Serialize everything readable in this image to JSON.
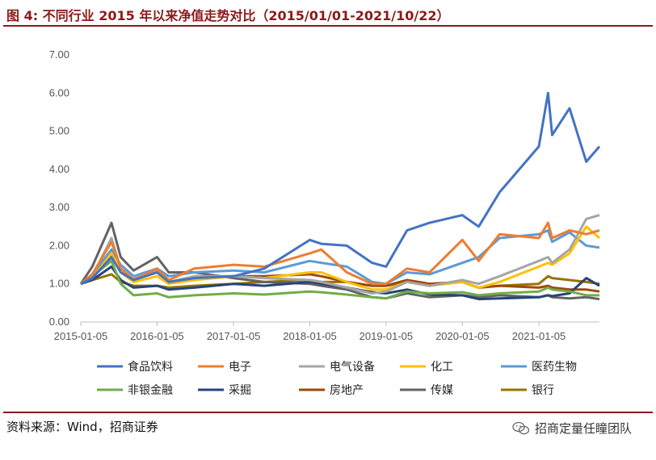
{
  "header": {
    "title": "图 4:  不同行业 2015 年以来净值走势对比（2015/01/01-2021/10/22）"
  },
  "footer": {
    "source": "资料来源：Wind，招商证券",
    "watermark": "招商定量任瞳团队",
    "watermark_icon": "wechat-icon"
  },
  "chart_data": {
    "type": "line",
    "title": "",
    "xlabel": "",
    "ylabel": "",
    "ylim": [
      0,
      7
    ],
    "yticks": [
      "0.00",
      "1.00",
      "2.00",
      "3.00",
      "4.00",
      "5.00",
      "6.00",
      "7.00"
    ],
    "xticks": [
      "2015-01-05",
      "2016-01-05",
      "2017-01-05",
      "2018-01-05",
      "2019-01-05",
      "2020-01-05",
      "2021-01-05"
    ],
    "legend_position": "bottom",
    "grid": false,
    "x": [
      "2015-01-05",
      "2015-03-01",
      "2015-06-01",
      "2015-07-15",
      "2015-09-15",
      "2016-01-05",
      "2016-03-01",
      "2016-07-01",
      "2017-01-05",
      "2017-06-01",
      "2018-01-05",
      "2018-03-01",
      "2018-07-01",
      "2018-10-30",
      "2019-01-05",
      "2019-04-15",
      "2019-08-01",
      "2020-01-05",
      "2020-03-23",
      "2020-07-01",
      "2021-01-05",
      "2021-02-18",
      "2021-03-10",
      "2021-06-01",
      "2021-08-20",
      "2021-10-22"
    ],
    "series": [
      {
        "name": "食品饮料",
        "color": "#4472c4",
        "values": [
          1.0,
          1.15,
          1.7,
          1.3,
          1.1,
          1.3,
          1.05,
          1.15,
          1.2,
          1.4,
          2.15,
          2.05,
          2.0,
          1.55,
          1.45,
          2.4,
          2.6,
          2.8,
          2.5,
          3.4,
          4.6,
          6.0,
          4.9,
          5.6,
          4.2,
          4.6
        ]
      },
      {
        "name": "电子",
        "color": "#ed7d31",
        "values": [
          1.0,
          1.25,
          2.1,
          1.4,
          1.1,
          1.4,
          1.1,
          1.4,
          1.5,
          1.45,
          1.8,
          1.9,
          1.3,
          1.0,
          1.0,
          1.4,
          1.3,
          2.15,
          1.6,
          2.3,
          2.2,
          2.6,
          2.2,
          2.4,
          2.3,
          2.4
        ]
      },
      {
        "name": "电气设备",
        "color": "#a5a5a5",
        "values": [
          1.0,
          1.2,
          2.2,
          1.4,
          1.15,
          1.35,
          1.05,
          1.2,
          1.2,
          1.15,
          1.1,
          1.05,
          0.9,
          0.75,
          0.8,
          1.05,
          0.95,
          1.1,
          1.0,
          1.2,
          1.6,
          1.7,
          1.55,
          1.9,
          2.7,
          2.8
        ]
      },
      {
        "name": "化工",
        "color": "#ffc000",
        "values": [
          1.0,
          1.15,
          1.8,
          1.3,
          1.05,
          1.2,
          1.0,
          1.1,
          1.2,
          1.15,
          1.3,
          1.3,
          1.05,
          0.85,
          0.85,
          1.05,
          0.95,
          1.05,
          0.9,
          1.05,
          1.45,
          1.55,
          1.5,
          1.8,
          2.5,
          2.2
        ]
      },
      {
        "name": "医药生物",
        "color": "#5b9bd5",
        "values": [
          1.0,
          1.25,
          1.9,
          1.5,
          1.2,
          1.4,
          1.2,
          1.3,
          1.35,
          1.3,
          1.6,
          1.55,
          1.45,
          1.05,
          1.0,
          1.3,
          1.25,
          1.55,
          1.7,
          2.2,
          2.3,
          2.4,
          2.1,
          2.35,
          2.0,
          1.95
        ]
      },
      {
        "name": "非银金融",
        "color": "#70ad47",
        "values": [
          1.0,
          1.2,
          1.6,
          1.0,
          0.7,
          0.75,
          0.65,
          0.7,
          0.75,
          0.72,
          0.8,
          0.78,
          0.72,
          0.65,
          0.62,
          0.8,
          0.75,
          0.78,
          0.7,
          0.75,
          0.8,
          0.9,
          0.85,
          0.8,
          0.7,
          0.7
        ]
      },
      {
        "name": "采掘",
        "color": "#264478",
        "values": [
          1.0,
          1.1,
          1.45,
          1.1,
          0.9,
          0.95,
          0.85,
          0.9,
          1.0,
          0.95,
          1.05,
          1.0,
          0.9,
          0.78,
          0.75,
          0.85,
          0.72,
          0.7,
          0.6,
          0.62,
          0.65,
          0.7,
          0.68,
          0.75,
          1.15,
          0.95
        ]
      },
      {
        "name": "房地产",
        "color": "#9e480e",
        "values": [
          1.0,
          1.2,
          1.75,
          1.3,
          1.1,
          1.3,
          1.05,
          1.15,
          1.2,
          1.2,
          1.25,
          1.2,
          1.05,
          0.95,
          0.95,
          1.1,
          1.0,
          1.05,
          0.9,
          0.95,
          0.9,
          0.95,
          0.9,
          0.85,
          0.85,
          0.8
        ]
      },
      {
        "name": "传媒",
        "color": "#636363",
        "values": [
          1.0,
          1.45,
          2.6,
          1.7,
          1.35,
          1.7,
          1.3,
          1.3,
          1.15,
          1.05,
          1.0,
          0.95,
          0.85,
          0.65,
          0.62,
          0.75,
          0.65,
          0.7,
          0.65,
          0.7,
          0.65,
          0.7,
          0.65,
          0.62,
          0.65,
          0.6
        ]
      },
      {
        "name": "银行",
        "color": "#997300",
        "values": [
          1.0,
          1.1,
          1.25,
          1.05,
          0.95,
          0.95,
          0.9,
          0.95,
          1.0,
          1.05,
          1.1,
          1.05,
          1.05,
          0.95,
          0.95,
          1.05,
          1.0,
          1.05,
          0.9,
          0.95,
          1.0,
          1.2,
          1.15,
          1.1,
          1.05,
          1.0
        ]
      }
    ]
  }
}
